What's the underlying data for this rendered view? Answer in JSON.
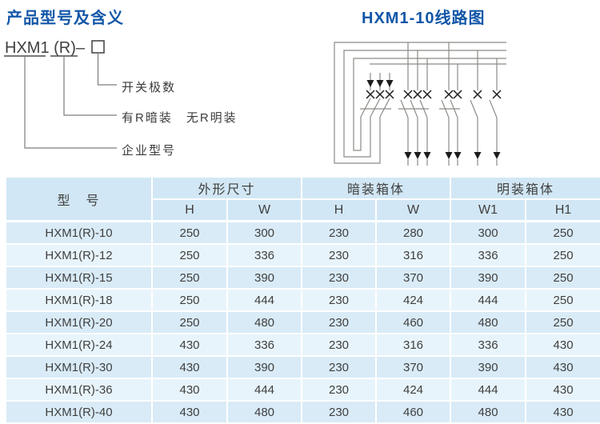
{
  "page": {
    "left_title": "产品型号及含义",
    "right_title": "HXM1-10线路图"
  },
  "model_legend": {
    "code": "HXM1 (R)–",
    "pole_box_symbol": "□",
    "labels": [
      "开关极数",
      "有R暗装　无R明装",
      "企业型号"
    ]
  },
  "table": {
    "model_header": "型　号",
    "groups": [
      {
        "label": "外形尺寸"
      },
      {
        "label": "暗装箱体"
      },
      {
        "label": "明装箱体"
      }
    ],
    "subheaders": [
      "H",
      "W",
      "H",
      "W",
      "W1",
      "H1"
    ],
    "rows": [
      [
        "HXM1(R)-10",
        "250",
        "300",
        "230",
        "280",
        "300",
        "250"
      ],
      [
        "HXM1(R)-12",
        "250",
        "336",
        "230",
        "316",
        "336",
        "250"
      ],
      [
        "HXM1(R)-15",
        "250",
        "390",
        "230",
        "370",
        "390",
        "250"
      ],
      [
        "HXM1(R)-18",
        "250",
        "444",
        "230",
        "424",
        "444",
        "250"
      ],
      [
        "HXM1(R)-20",
        "250",
        "480",
        "230",
        "460",
        "480",
        "250"
      ],
      [
        "HXM1(R)-24",
        "430",
        "336",
        "230",
        "316",
        "336",
        "430"
      ],
      [
        "HXM1(R)-30",
        "430",
        "390",
        "230",
        "370",
        "390",
        "430"
      ],
      [
        "HXM1(R)-36",
        "430",
        "444",
        "230",
        "424",
        "444",
        "430"
      ],
      [
        "HXM1(R)-40",
        "430",
        "480",
        "230",
        "460",
        "480",
        "430"
      ]
    ]
  },
  "colors": {
    "title_blue": "#1257a8",
    "table_row_dark": "#d9ebf7",
    "table_row_light": "#e8f4fb",
    "table_header_bg": "#d2e7f5",
    "circuit_line_gray": "#8e8a86",
    "circuit_mark_black": "#1c1c1c"
  }
}
